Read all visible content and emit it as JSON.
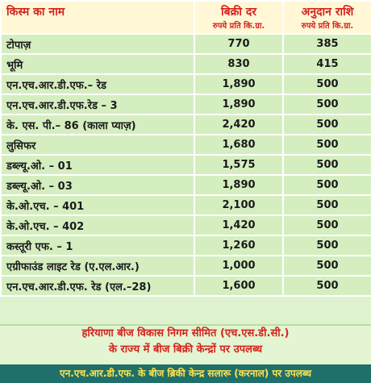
{
  "table": {
    "header": [
      {
        "title": "किस्म का नाम"
      },
      {
        "title": "बिक्री दर",
        "unit": "रुपये प्रति कि.ग्रा."
      },
      {
        "title": "अनुदान राशि",
        "unit": "रुपये प्रति कि.ग्रा."
      }
    ],
    "rows": [
      [
        "टोपाज़",
        "770",
        "385"
      ],
      [
        "भूमि",
        "830",
        "415"
      ],
      [
        "एन.एच.आर.डी.एफ.– रेड",
        "1,890",
        "500"
      ],
      [
        "एन.एच.आर.डी.एफ.रेड – 3",
        "1,890",
        "500"
      ],
      [
        "के. एस. पी.– 86 (काला प्याज़)",
        "2,420",
        "500"
      ],
      [
        "लुसिफर",
        "1,680",
        "500"
      ],
      [
        "डब्ल्यू.ओ. – 01",
        "1,575",
        "500"
      ],
      [
        "डब्ल्यू.ओ. – 03",
        "1,890",
        "500"
      ],
      [
        "के.ओ.एच. – 401",
        "2,100",
        "500"
      ],
      [
        "के.ओ.एच. – 402",
        "1,420",
        "500"
      ],
      [
        "कस्तूरी एफ. – 1",
        "1,260",
        "500"
      ],
      [
        "एग्रीफाउंड लाइट रेड (ए.एल.आर.)",
        "1,000",
        "500"
      ],
      [
        "एन.एच.आर.डी.एफ. रेड (एल.–28)",
        "1,600",
        "500"
      ]
    ]
  },
  "footer": {
    "lines": [
      "हरियाणा बीज विकास निगम सीमित (एच.एस.डी.सी.)",
      "के राज्य में बीज बिक्री केन्द्रों पर उपलब्ध"
    ]
  },
  "banner": "एन.एच.आर.डी.एफ. के बीज ब्रिकी केन्द्र सलारू (करनाल) पर उपलब्ध"
}
